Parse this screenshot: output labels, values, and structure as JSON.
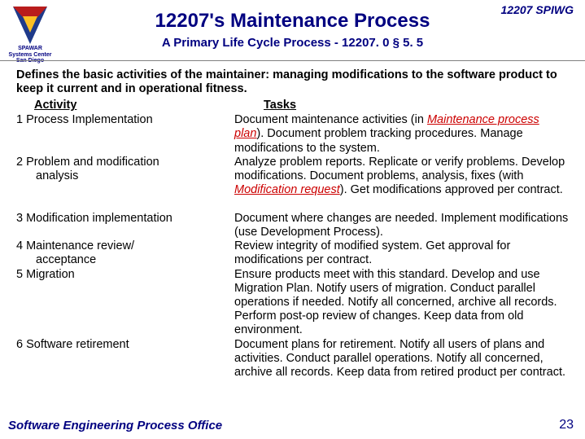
{
  "header": {
    "top_right": "12207 SPIWG",
    "title": "12207's Maintenance Process",
    "subtitle": "A Primary Life Cycle Process - 12207. 0 § 5. 5",
    "logo_caption_l1": "SPAWAR",
    "logo_caption_l2": "Systems Center",
    "logo_caption_l3": "San Diego"
  },
  "colors": {
    "navy": "#000080",
    "red": "#cc0000",
    "logo_blue": "#1e3a8a",
    "logo_red": "#b91c1c",
    "logo_yellow": "#fbbf24"
  },
  "intro": "Defines the basic activities of the maintainer: managing modifications to the software product to keep it current and in operational fitness.",
  "col_headers": {
    "activity": "Activity",
    "tasks": "Tasks"
  },
  "rows": [
    {
      "num": "1",
      "activity": "Process Implementation",
      "activity_cont": "",
      "task_pre": "Document maintenance activities (in ",
      "task_red1": "Maintenance process plan",
      "task_mid": "). Document problem tracking procedures. Manage modifications to the system.",
      "task_red2": "",
      "task_post": "",
      "lines": 3
    },
    {
      "num": "2",
      "activity": "Problem and modification",
      "activity_cont": "analysis",
      "task_pre": "Analyze problem reports.  Replicate or verify problems. Develop modifications. Document problems, analysis, fixes (with ",
      "task_red1": "Modification request",
      "task_mid": "). Get modifications approved per contract.",
      "task_red2": "",
      "task_post": "",
      "lines": 4
    },
    {
      "num": "3",
      "activity": "Modification implementation",
      "activity_cont": "",
      "task_pre": "Document where changes are needed.  Implement modifications (use Development Process).",
      "task_red1": "",
      "task_mid": "",
      "task_red2": "",
      "task_post": "",
      "lines": 2
    },
    {
      "num": "4",
      "activity": "Maintenance review/",
      "activity_cont": "acceptance",
      "task_pre": "Review integrity of modified system. Get approval for modifications per contract.",
      "task_red1": "",
      "task_mid": "",
      "task_red2": "",
      "task_post": "",
      "lines": 2
    },
    {
      "num": "5",
      "activity": "Migration",
      "activity_cont": "",
      "task_pre": "Ensure products meet with this standard. Develop and use Migration Plan. Notify users of migration. Conduct parallel operations if needed. Notify all concerned, archive all records. Perform post-op review of changes. Keep data from old environment.",
      "task_red1": "",
      "task_mid": "",
      "task_red2": "",
      "task_post": "",
      "lines": 5
    },
    {
      "num": "6",
      "activity": "Software retirement",
      "activity_cont": "",
      "task_pre": "Document plans for retirement. Notify all users of plans and activities. Conduct parallel operations. Notify all concerned, archive all records. Keep data from retired product per contract.",
      "task_red1": "",
      "task_mid": "",
      "task_red2": "",
      "task_post": "",
      "lines": 4
    }
  ],
  "footer": "Software Engineering Process Office",
  "page_number": "23"
}
